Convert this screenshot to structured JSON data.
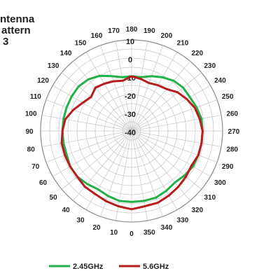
{
  "chart_data": {
    "type": "polar-line",
    "title_lines": [
      "ntenna",
      "attern",
      "3"
    ],
    "angle_ticks": [
      0,
      10,
      20,
      30,
      40,
      50,
      60,
      70,
      80,
      90,
      100,
      110,
      120,
      130,
      140,
      150,
      160,
      170,
      180,
      190,
      200,
      210,
      220,
      230,
      240,
      250,
      260,
      270,
      280,
      290,
      300,
      310,
      320,
      330,
      340,
      350
    ],
    "radial_ticks": [
      10,
      0,
      -10,
      -20,
      -30,
      -40
    ],
    "rlim": [
      -40,
      10
    ],
    "legend_position": "bottom",
    "series": [
      {
        "name": "2.45GHz",
        "color": "#22b04b",
        "angles": [
          0,
          10,
          20,
          30,
          40,
          50,
          60,
          70,
          80,
          90,
          100,
          110,
          120,
          130,
          140,
          150,
          160,
          170,
          180,
          190,
          200,
          210,
          220,
          230,
          240,
          250,
          260,
          270,
          280,
          290,
          300,
          310,
          320,
          330,
          340,
          350
        ],
        "values": [
          -1,
          -1,
          -2,
          -3,
          -2,
          -1,
          -1,
          -2,
          -2,
          -2,
          -2,
          -2,
          -2,
          -2,
          -3,
          -5,
          -8,
          -10,
          -10,
          -10,
          -8,
          -6,
          -4,
          -3,
          -3,
          -2,
          -1,
          -1,
          -1,
          -1,
          -1,
          -2,
          -3,
          -2,
          -1,
          -1
        ]
      },
      {
        "name": "5.6GHz",
        "color": "#b81c1c",
        "angles": [
          0,
          10,
          20,
          30,
          40,
          50,
          60,
          70,
          80,
          90,
          100,
          110,
          120,
          130,
          140,
          150,
          160,
          170,
          180,
          190,
          200,
          210,
          220,
          230,
          240,
          250,
          260,
          270,
          280,
          290,
          300,
          310,
          320,
          330,
          340,
          350
        ],
        "values": [
          3,
          2,
          1,
          0,
          0,
          -1,
          -1,
          -1,
          -1,
          -2,
          -3,
          -6,
          -9,
          -11,
          -9,
          -10,
          -11,
          -12,
          -10,
          -11,
          -12,
          -11,
          -10,
          -7,
          -5,
          -3,
          -2,
          -1,
          -1,
          -1,
          -2,
          -1,
          0,
          1,
          2,
          2
        ]
      }
    ]
  }
}
